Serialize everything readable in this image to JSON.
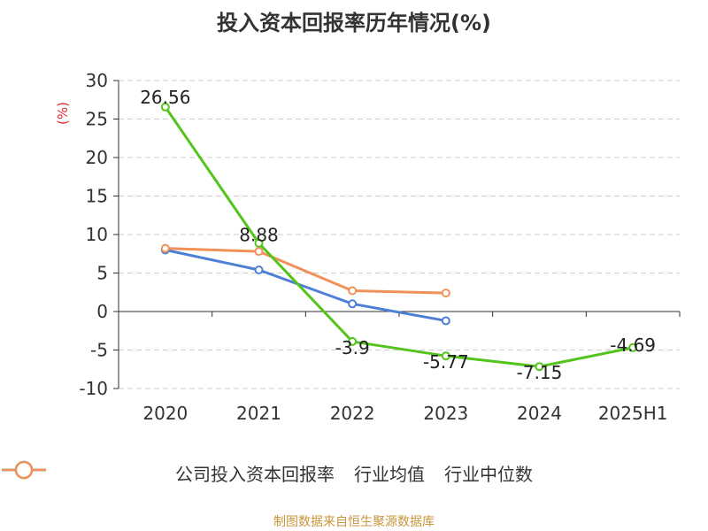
{
  "title": "投入资本回报率历年情况(%)",
  "source": "制图数据来自恒生聚源数据库",
  "chart_data": {
    "type": "line",
    "title": "投入资本回报率历年情况(%)",
    "ylabel": "(%)",
    "ylim": [
      -10,
      30
    ],
    "yticks": [
      30,
      25,
      20,
      15,
      10,
      5,
      0,
      -5,
      -10
    ],
    "categories": [
      "2020",
      "2021",
      "2022",
      "2023",
      "2024",
      "2025H1"
    ],
    "grid": true,
    "legend_position": "bottom",
    "series": [
      {
        "name": "公司投入资本回报率",
        "color": "#52c41a",
        "values": [
          26.56,
          8.88,
          -3.9,
          -5.77,
          -7.15,
          -4.69
        ],
        "labels": [
          "26.56",
          "8.88",
          "-3.9",
          "-5.77",
          "-7.15",
          "-4.69"
        ]
      },
      {
        "name": "行业均值",
        "color": "#4e7fd6",
        "values": [
          8.0,
          5.4,
          1.0,
          -1.2,
          null,
          null
        ]
      },
      {
        "name": "行业中位数",
        "color": "#f0915a",
        "values": [
          8.2,
          7.8,
          2.7,
          2.4,
          null,
          null
        ]
      }
    ]
  }
}
